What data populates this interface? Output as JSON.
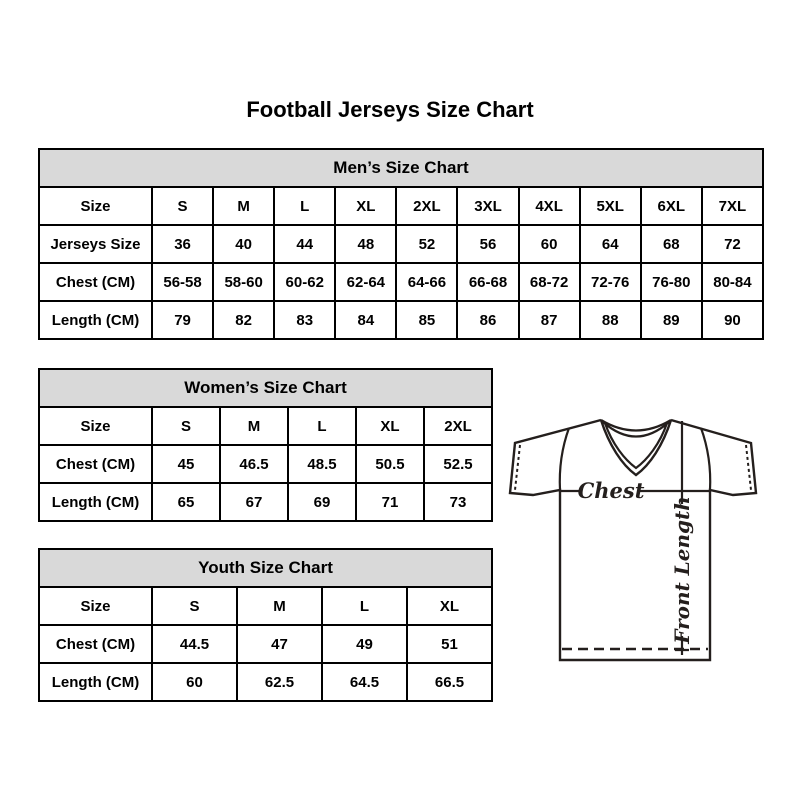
{
  "title": "Football Jerseys Size Chart",
  "colors": {
    "background": "#ffffff",
    "table_border": "#000000",
    "header_bg": "#d9d9d9",
    "text": "#000000",
    "diagram_line": "#241f1d"
  },
  "chart_data": [
    {
      "type": "table",
      "title": "Men’s Size Chart",
      "rows": [
        [
          "Size",
          "S",
          "M",
          "L",
          "XL",
          "2XL",
          "3XL",
          "4XL",
          "5XL",
          "6XL",
          "7XL"
        ],
        [
          "Jerseys Size",
          "36",
          "40",
          "44",
          "48",
          "52",
          "56",
          "60",
          "64",
          "68",
          "72"
        ],
        [
          "Chest (CM)",
          "56-58",
          "58-60",
          "60-62",
          "62-64",
          "64-66",
          "66-68",
          "68-72",
          "72-76",
          "76-80",
          "80-84"
        ],
        [
          "Length (CM)",
          "79",
          "82",
          "83",
          "84",
          "85",
          "86",
          "87",
          "88",
          "89",
          "90"
        ]
      ]
    },
    {
      "type": "table",
      "title": "Women’s Size Chart",
      "rows": [
        [
          "Size",
          "S",
          "M",
          "L",
          "XL",
          "2XL"
        ],
        [
          "Chest (CM)",
          "45",
          "46.5",
          "48.5",
          "50.5",
          "52.5"
        ],
        [
          "Length (CM)",
          "65",
          "67",
          "69",
          "71",
          "73"
        ]
      ]
    },
    {
      "type": "table",
      "title": "Youth Size Chart",
      "rows": [
        [
          "Size",
          "S",
          "M",
          "L",
          "XL"
        ],
        [
          "Chest (CM)",
          "44.5",
          "47",
          "49",
          "51"
        ],
        [
          "Length (CM)",
          "60",
          "62.5",
          "64.5",
          "66.5"
        ]
      ]
    }
  ],
  "diagram": {
    "chest_label": "Chest",
    "front_length_label": "Front Length"
  }
}
